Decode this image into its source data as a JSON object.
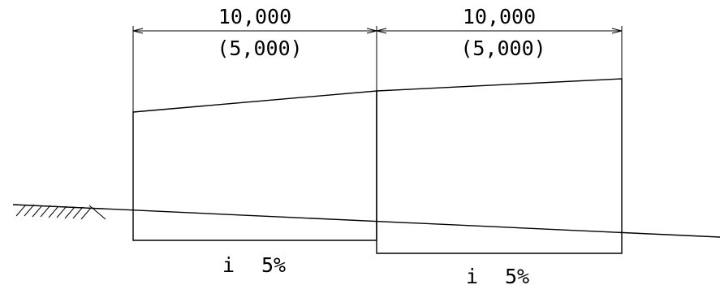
{
  "dimensions": {
    "left": {
      "value": "10,000",
      "sub_value": "(5,000)"
    },
    "right": {
      "value": "10,000",
      "sub_value": "(5,000)"
    }
  },
  "slopes": {
    "left": {
      "symbol": "i",
      "value": "5%"
    },
    "right": {
      "symbol": "i",
      "value": "5%"
    }
  },
  "symbols": {
    "ground": "ground-hatch-symbol"
  },
  "colors": {
    "line": "#000000",
    "background": "#ffffff"
  }
}
